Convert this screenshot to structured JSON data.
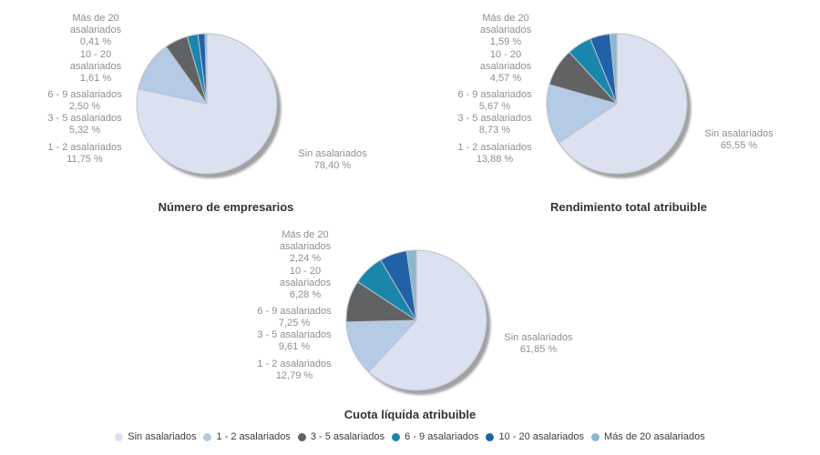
{
  "colors": [
    "#dce1f0",
    "#b4cae5",
    "#606264",
    "#1a86ab",
    "#2161a8",
    "#8bb8cd"
  ],
  "shadow_color": "#a1a1a1",
  "slice_border_color": "#bac1d0",
  "legend": {
    "items": [
      {
        "label": "Sin asalariados",
        "color": "#dce1f0"
      },
      {
        "label": "1 - 2 asalariados",
        "color": "#b4cae5"
      },
      {
        "label": "3 - 5 asalariados",
        "color": "#606264"
      },
      {
        "label": "6 - 9 asalariados",
        "color": "#1a86ab"
      },
      {
        "label": "10 - 20 asalariados",
        "color": "#2161a8"
      },
      {
        "label": "Más de 20 asalariados",
        "color": "#8bb8cd"
      }
    ]
  },
  "chart_data": [
    {
      "type": "pie",
      "title": "Número de empresarios",
      "categories": [
        "Sin asalariados",
        "1 - 2 asalariados",
        "3 - 5 asalariados",
        "6 - 9 asalariados",
        "10 - 20 asalariados",
        "Más de 20 asalariados"
      ],
      "values": [
        78.4,
        11.75,
        5.32,
        2.5,
        1.61,
        0.41
      ],
      "percent_labels": [
        "78,40 %",
        "11,75 %",
        "5,32 %",
        "2,50 %",
        "1,61 %",
        "0,41 %"
      ],
      "start_angle_deg": -90,
      "direction": "clockwise",
      "side_labels": [
        "Más de 20\nasalariados\n0,41 %",
        "10 - 20\nasalariados\n1,61 %",
        "6 - 9 asalariados\n2,50 %",
        "3 - 5 asalariados\n5,32 %",
        "1 - 2 asalariados\n11,75 %"
      ],
      "main_label": "Sin asalariados\n78,40 %"
    },
    {
      "type": "pie",
      "title": "Rendimiento total atribuible",
      "categories": [
        "Sin asalariados",
        "1 - 2 asalariados",
        "3 - 5 asalariados",
        "6 - 9 asalariados",
        "10 - 20 asalariados",
        "Más de 20 asalariados"
      ],
      "values": [
        65.55,
        13.88,
        8.73,
        5.67,
        4.57,
        1.59
      ],
      "percent_labels": [
        "65,55 %",
        "13,88 %",
        "8,73 %",
        "5,67 %",
        "4,57 %",
        "1,59 %"
      ],
      "start_angle_deg": -90,
      "direction": "clockwise",
      "side_labels": [
        "Más de 20\nasalariados\n1,59 %",
        "10 - 20\nasalariados\n4,57 %",
        "6 - 9 asalariados\n5,67 %",
        "3 - 5 asalariados\n8,73 %",
        "1 - 2 asalariados\n13,88 %"
      ],
      "main_label": "Sin asalariados\n65,55 %"
    },
    {
      "type": "pie",
      "title": "Cuota líquida atribuible",
      "categories": [
        "Sin asalariados",
        "1 - 2 asalariados",
        "3 - 5 asalariados",
        "6 - 9 asalariados",
        "10 - 20 asalariados",
        "Más de 20 asalariados"
      ],
      "values": [
        61.85,
        12.79,
        9.61,
        7.25,
        6.28,
        2.24
      ],
      "percent_labels": [
        "61,85 %",
        "12,79 %",
        "9,61 %",
        "7,25 %",
        "6,28 %",
        "2,24 %"
      ],
      "start_angle_deg": -90,
      "direction": "clockwise",
      "side_labels": [
        "Más de 20\nasalariados\n2,24 %",
        "10 - 20\nasalariados\n6,28 %",
        "6 - 9 asalariados\n7,25 %",
        "3 - 5 asalariados\n9,61 %",
        "1 - 2 asalariados\n12,79 %"
      ],
      "main_label": "Sin asalariados\n61,85 %"
    }
  ]
}
